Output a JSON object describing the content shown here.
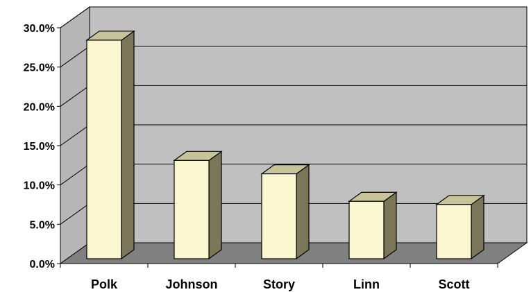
{
  "chart_data": {
    "type": "bar",
    "style": "3d-column",
    "categories": [
      "Polk",
      "Johnson",
      "Story",
      "Linn",
      "Scott"
    ],
    "values": [
      27.8,
      12.5,
      10.8,
      7.3,
      6.9
    ],
    "ylim": [
      0,
      30
    ],
    "yticks": [
      "0.0%",
      "5.0%",
      "10.0%",
      "15.0%",
      "20.0%",
      "25.0%",
      "30.0%"
    ],
    "title": "",
    "xlabel": "",
    "ylabel": "",
    "grid": true,
    "legend": false,
    "colors": {
      "bar_front": "#fbf7d0",
      "bar_top": "#c8c49a",
      "bar_side": "#7b7658",
      "back_wall": "#c0c0c0",
      "side_wall": "#b6b6b6",
      "floor": "#808080",
      "gridline": "#000000"
    }
  }
}
